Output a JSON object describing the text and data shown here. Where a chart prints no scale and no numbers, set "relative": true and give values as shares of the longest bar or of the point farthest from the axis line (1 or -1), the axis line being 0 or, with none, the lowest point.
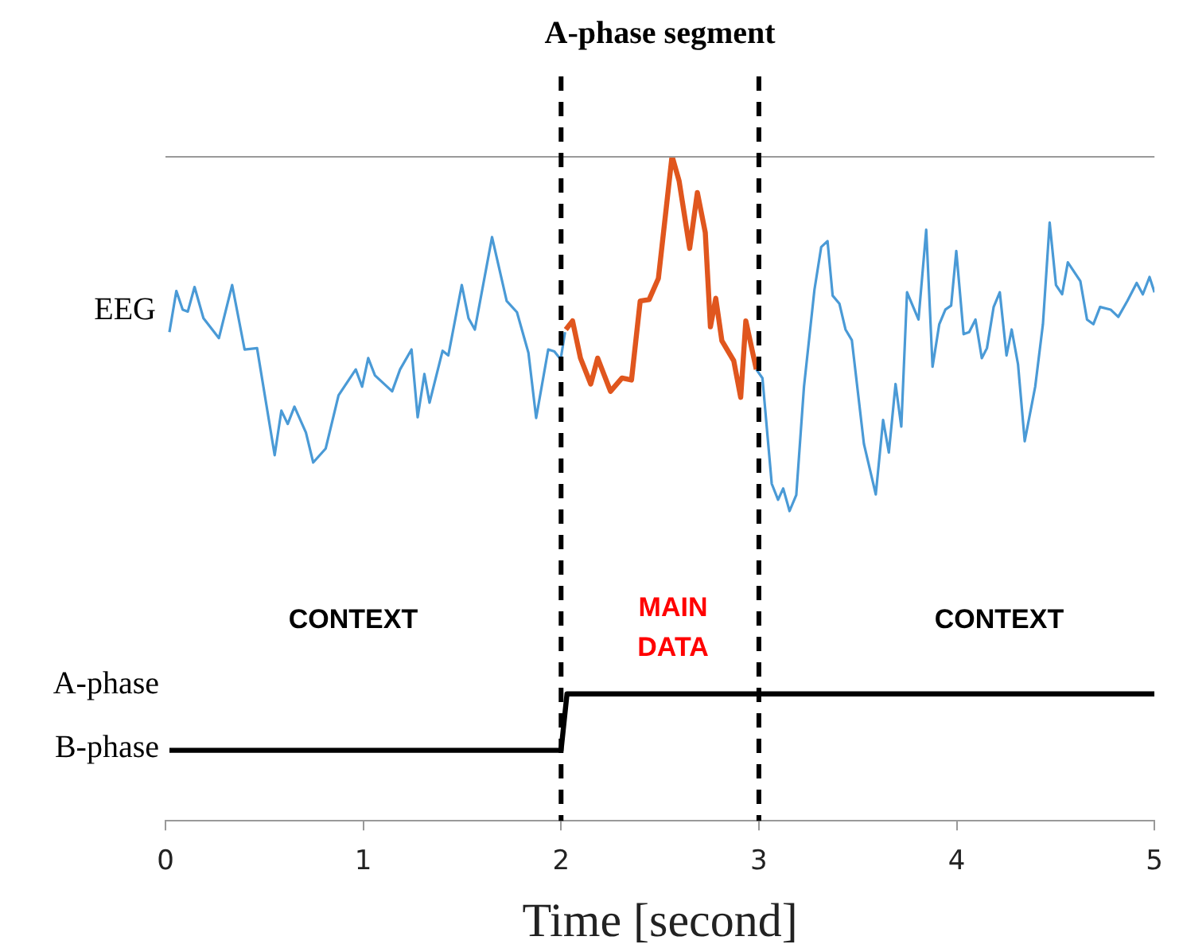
{
  "chart_data": {
    "type": "line",
    "title": "A-phase segment",
    "xlabel": "Time [second]",
    "relative": true,
    "xlim": [
      0,
      5
    ],
    "xticks": [
      0,
      1,
      2,
      3,
      4,
      5
    ],
    "grid": false,
    "legend": false,
    "marker": "none",
    "series": [
      {
        "color": "#4a9ad6",
        "x": [
          0.02,
          0.055,
          0.087,
          0.113,
          0.147,
          0.192,
          0.27,
          0.337,
          0.4,
          0.463,
          0.552,
          0.586,
          0.618,
          0.652,
          0.71,
          0.747,
          0.81,
          0.875,
          0.962,
          0.994,
          1.025,
          1.059,
          1.146,
          1.186,
          1.244,
          1.275,
          1.309,
          1.335,
          1.401,
          1.43,
          1.498,
          1.532,
          1.564,
          1.651,
          1.725,
          1.777,
          1.835,
          1.874,
          1.935,
          1.966,
          1.998,
          2.02,
          2.5,
          2.987,
          3.018,
          3.065,
          3.097,
          3.123,
          3.155,
          3.189,
          3.228,
          3.281,
          3.315,
          3.347,
          3.373,
          3.407,
          3.438,
          3.47,
          3.531,
          3.591,
          3.628,
          3.657,
          3.691,
          3.72,
          3.749,
          3.807,
          3.846,
          3.878,
          3.912,
          3.943,
          3.972,
          3.998,
          4.035,
          4.063,
          4.095,
          4.127,
          4.153,
          4.187,
          4.218,
          4.252,
          4.278,
          4.31,
          4.344,
          4.397,
          4.436,
          4.47,
          4.502,
          4.533,
          4.562,
          4.625,
          4.659,
          4.691,
          4.725,
          4.778,
          4.817,
          4.863,
          4.91,
          4.941,
          4.975,
          5.0
        ],
        "values": [
          0.735,
          0.797,
          0.769,
          0.766,
          0.803,
          0.756,
          0.726,
          0.806,
          0.709,
          0.711,
          0.55,
          0.617,
          0.597,
          0.623,
          0.584,
          0.539,
          0.56,
          0.64,
          0.679,
          0.653,
          0.696,
          0.67,
          0.646,
          0.679,
          0.709,
          0.607,
          0.672,
          0.629,
          0.707,
          0.7,
          0.806,
          0.756,
          0.739,
          0.878,
          0.782,
          0.765,
          0.704,
          0.606,
          0.709,
          0.706,
          0.694,
          0.735,
          null,
          0.679,
          0.666,
          0.507,
          0.483,
          0.5,
          0.466,
          0.49,
          0.653,
          0.799,
          0.863,
          0.872,
          0.79,
          0.778,
          0.739,
          0.723,
          0.567,
          0.491,
          0.603,
          0.554,
          0.657,
          0.593,
          0.795,
          0.754,
          0.889,
          0.683,
          0.747,
          0.769,
          0.775,
          0.857,
          0.732,
          0.735,
          0.754,
          0.696,
          0.711,
          0.773,
          0.795,
          0.7,
          0.739,
          0.687,
          0.571,
          0.653,
          0.747,
          0.9,
          0.806,
          0.792,
          0.84,
          0.812,
          0.754,
          0.747,
          0.773,
          0.769,
          0.758,
          0.782,
          0.809,
          0.792,
          0.818,
          0.795
        ]
      },
      {
        "color": "#e0561e",
        "x": [
          2.024,
          2.058,
          2.098,
          2.15,
          2.185,
          2.25,
          2.308,
          2.356,
          2.4,
          2.445,
          2.492,
          2.561,
          2.597,
          2.65,
          2.689,
          2.729,
          2.755,
          2.782,
          2.813,
          2.873,
          2.908,
          2.934,
          2.987
        ],
        "values": [
          0.739,
          0.752,
          0.696,
          0.657,
          0.696,
          0.646,
          0.666,
          0.663,
          0.782,
          0.784,
          0.816,
          1.0,
          0.962,
          0.861,
          0.945,
          0.885,
          0.743,
          0.786,
          0.722,
          0.692,
          0.637,
          0.752,
          0.679
        ]
      },
      {
        "color": "#000000",
        "x": [
          0.02,
          2.0,
          2.03,
          5.0
        ],
        "values": [
          0.106,
          0.106,
          0.191,
          0.191
        ]
      }
    ],
    "ref_lines": [
      {
        "axis": "x",
        "value": 2,
        "color": "#000000",
        "line_style": "dashed"
      },
      {
        "axis": "x",
        "value": 3,
        "color": "#000000",
        "line_style": "dashed"
      }
    ],
    "annotations": [
      "EEG",
      "A-phase",
      "B-phase",
      "CONTEXT",
      "MAIN DATA",
      "CONTEXT"
    ]
  }
}
